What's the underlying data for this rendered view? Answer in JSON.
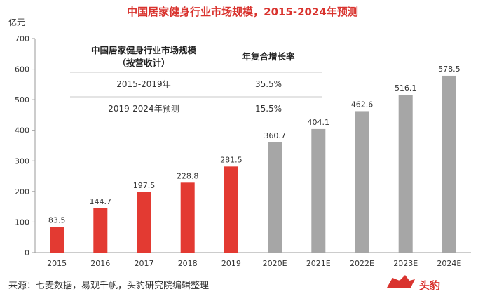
{
  "chart_data": {
    "type": "bar",
    "title": "中国居家健身行业市场规模，2015-2024年预测",
    "ylabel": "亿元",
    "ylim": [
      0,
      700
    ],
    "yticks": [
      0,
      100,
      200,
      300,
      400,
      500,
      600,
      700
    ],
    "categories": [
      "2015",
      "2016",
      "2017",
      "2018",
      "2019",
      "2020E",
      "2021E",
      "2022E",
      "2023E",
      "2024E"
    ],
    "values": [
      83.5,
      144.7,
      197.5,
      228.8,
      281.5,
      360.7,
      404.1,
      462.6,
      516.1,
      578.5
    ],
    "value_labels": [
      "83.5",
      "144.7",
      "197.5",
      "228.8",
      "281.5",
      "360.7",
      "404.1",
      "462.6",
      "516.1",
      "578.5"
    ],
    "colors": {
      "actual": "#e33a32",
      "forecast": "#a6a6a6"
    },
    "forecast_from_index": 5,
    "grid": false,
    "legend": "none"
  },
  "table": {
    "header": {
      "col1_line1": "中国居家健身行业市场规模",
      "col1_line2": "（按营收计）",
      "col2": "年复合增长率"
    },
    "rows": [
      {
        "period": "2015-2019年",
        "cagr": "35.5%"
      },
      {
        "period": "2019-2024年预测",
        "cagr": "15.5%"
      }
    ]
  },
  "footer": {
    "source": "来源：七麦数据，易观千帆，头豹研究院编辑整理",
    "logo_text": "头豹"
  }
}
